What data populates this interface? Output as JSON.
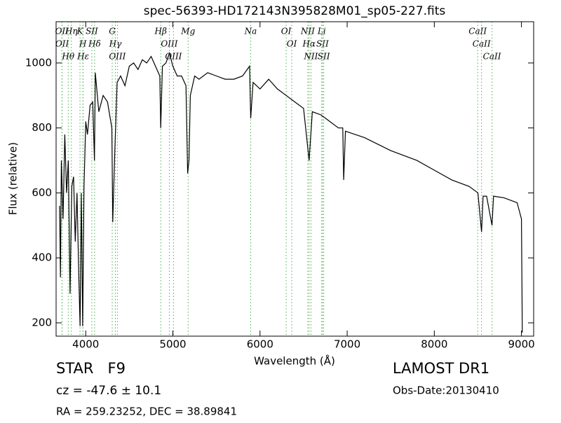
{
  "chart_data": {
    "type": "line",
    "title": "spec-56393-HD172143N395828M01_sp05-227.fits",
    "x_label": "Wavelength (Å)",
    "y_label": "Flux (relative)",
    "xlim": [
      3660,
      9140
    ],
    "ylim": [
      159,
      1127
    ],
    "xticks": [
      4000,
      5000,
      6000,
      7000,
      8000,
      9000
    ],
    "yticks": [
      200,
      400,
      600,
      800,
      1000
    ],
    "series": [
      {
        "color": "#000000",
        "x": [
          3700,
          3710,
          3720,
          3740,
          3760,
          3780,
          3800,
          3820,
          3840,
          3860,
          3880,
          3900,
          3920,
          3935,
          3950,
          3965,
          3980,
          4000,
          4020,
          4050,
          4080,
          4100,
          4110,
          4150,
          4200,
          4250,
          4300,
          4310,
          4330,
          4360,
          4400,
          4450,
          4500,
          4550,
          4600,
          4650,
          4700,
          4750,
          4800,
          4850,
          4861,
          4880,
          4920,
          4960,
          5000,
          5050,
          5100,
          5150,
          5170,
          5185,
          5200,
          5250,
          5300,
          5400,
          5500,
          5600,
          5700,
          5800,
          5880,
          5893,
          5920,
          6000,
          6100,
          6200,
          6300,
          6400,
          6500,
          6563,
          6600,
          6700,
          6800,
          6900,
          6950,
          6960,
          6980,
          7200,
          7500,
          7800,
          8000,
          8200,
          8400,
          8500,
          8542,
          8560,
          8600,
          8662,
          8680,
          8800,
          8950,
          9000,
          9010
        ],
        "values": [
          560,
          340,
          700,
          520,
          780,
          600,
          700,
          290,
          620,
          650,
          450,
          600,
          350,
          190,
          600,
          190,
          620,
          820,
          780,
          870,
          880,
          700,
          970,
          850,
          900,
          880,
          800,
          510,
          700,
          940,
          960,
          930,
          990,
          1000,
          980,
          1010,
          1000,
          1020,
          990,
          960,
          800,
          990,
          1000,
          1030,
          990,
          960,
          960,
          930,
          660,
          700,
          900,
          960,
          950,
          970,
          960,
          950,
          950,
          960,
          990,
          830,
          940,
          920,
          950,
          920,
          900,
          880,
          860,
          700,
          850,
          840,
          820,
          800,
          800,
          640,
          790,
          770,
          730,
          700,
          670,
          640,
          620,
          600,
          480,
          590,
          590,
          500,
          590,
          585,
          570,
          520,
          170
        ]
      }
    ],
    "line_color": "#4caf50",
    "lines": [
      {
        "x": 3727,
        "label": "OII"
      },
      {
        "x": 3729,
        "label": "OII"
      },
      {
        "x": 3799,
        "label": "Hθ"
      },
      {
        "x": 3835,
        "label": "Hη"
      },
      {
        "x": 3934,
        "label": "K"
      },
      {
        "x": 3968,
        "label": "H"
      },
      {
        "x": 3970,
        "label": "Hε"
      },
      {
        "x": 4070,
        "label": "SII"
      },
      {
        "x": 4102,
        "label": "Hδ"
      },
      {
        "x": 4304,
        "label": "G"
      },
      {
        "x": 4340,
        "label": "Hγ"
      },
      {
        "x": 4363,
        "label": "OIII"
      },
      {
        "x": 4861,
        "label": "Hβ"
      },
      {
        "x": 4959,
        "label": "OIII"
      },
      {
        "x": 5007,
        "label": "OIII"
      },
      {
        "x": 5175,
        "label": "Mg"
      },
      {
        "x": 5893,
        "label": "Na"
      },
      {
        "x": 6300,
        "label": "OI"
      },
      {
        "x": 6364,
        "label": "OI"
      },
      {
        "x": 6548,
        "label": "NII"
      },
      {
        "x": 6563,
        "label": "Hα"
      },
      {
        "x": 6584,
        "label": "NII"
      },
      {
        "x": 6708,
        "label": "Li"
      },
      {
        "x": 6717,
        "label": "SII"
      },
      {
        "x": 6731,
        "label": "SII"
      },
      {
        "x": 8498,
        "label": "CaII"
      },
      {
        "x": 8542,
        "label": "CaII"
      },
      {
        "x": 8662,
        "label": "CaII"
      }
    ],
    "info": {
      "class": "STAR   F9",
      "survey": "LAMOST DR1",
      "cz": "cz = -47.6 ± 10.1",
      "date": "Obs-Date:20130410",
      "coords": "RA = 259.23252, DEC = 38.89841"
    }
  }
}
